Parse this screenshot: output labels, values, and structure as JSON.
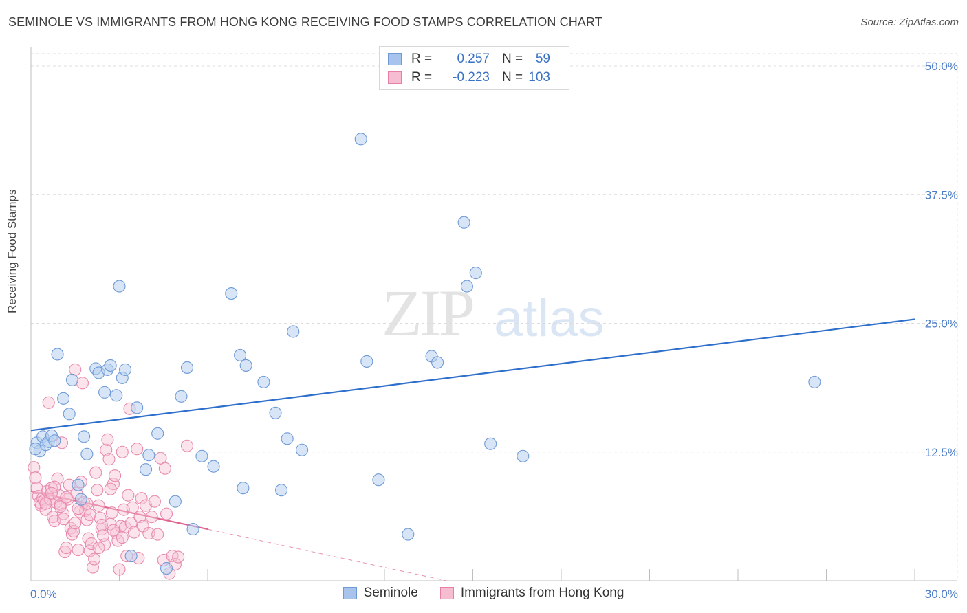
{
  "title": "SEMINOLE VS IMMIGRANTS FROM HONG KONG RECEIVING FOOD STAMPS CORRELATION CHART",
  "source": "Source: ZipAtlas.com",
  "watermark": {
    "zip": "ZIP",
    "atlas": "atlas"
  },
  "legend": {
    "r_label": "R =",
    "n_label": "N =",
    "rows": [
      {
        "name": "Seminole",
        "r": "0.257",
        "n": "59",
        "color": "#a9c4ec",
        "border": "#6f9ad6"
      },
      {
        "name": "Immigrants from Hong Kong",
        "r": "-0.223",
        "n": "103",
        "color": "#f6bdd0",
        "border": "#e87fa6"
      }
    ]
  },
  "chart_data": {
    "type": "scatter",
    "title": "SEMINOLE VS IMMIGRANTS FROM HONG KONG RECEIVING FOOD STAMPS CORRELATION CHART",
    "xlabel": "",
    "ylabel": "Receiving Food Stamps",
    "xlim": [
      0,
      30
    ],
    "ylim": [
      0,
      50
    ],
    "x_tick_labels": [
      {
        "value": 0,
        "label": "0.0%"
      },
      {
        "value": 30,
        "label": "30.0%"
      }
    ],
    "y_tick_labels": [
      {
        "value": 12.5,
        "label": "12.5%"
      },
      {
        "value": 25,
        "label": "25.0%"
      },
      {
        "value": 37.5,
        "label": "37.5%"
      },
      {
        "value": 50,
        "label": "50.0%"
      }
    ],
    "series": [
      {
        "name": "Seminole",
        "color": "#7aa3e0",
        "trend": {
          "x": [
            0,
            30
          ],
          "y": [
            14.6,
            25.4
          ],
          "color": "#2f6fcc"
        },
        "points": [
          [
            0.2,
            13.4
          ],
          [
            0.3,
            12.6
          ],
          [
            0.4,
            14.0
          ],
          [
            0.5,
            13.2
          ],
          [
            0.6,
            13.5
          ],
          [
            0.7,
            14.1
          ],
          [
            0.9,
            22.0
          ],
          [
            1.1,
            17.7
          ],
          [
            1.3,
            16.2
          ],
          [
            1.4,
            19.5
          ],
          [
            1.6,
            9.3
          ],
          [
            1.7,
            7.9
          ],
          [
            1.8,
            14.0
          ],
          [
            1.9,
            12.3
          ],
          [
            2.2,
            20.6
          ],
          [
            2.3,
            20.2
          ],
          [
            2.5,
            18.3
          ],
          [
            2.6,
            20.5
          ],
          [
            2.7,
            20.9
          ],
          [
            2.9,
            18.0
          ],
          [
            3.0,
            28.6
          ],
          [
            3.1,
            19.7
          ],
          [
            3.2,
            20.5
          ],
          [
            3.4,
            2.4
          ],
          [
            3.6,
            16.8
          ],
          [
            3.9,
            10.8
          ],
          [
            4.0,
            12.2
          ],
          [
            4.3,
            14.3
          ],
          [
            4.6,
            1.2
          ],
          [
            4.9,
            7.7
          ],
          [
            5.1,
            17.9
          ],
          [
            5.3,
            20.7
          ],
          [
            5.5,
            5.0
          ],
          [
            5.8,
            12.1
          ],
          [
            6.2,
            11.1
          ],
          [
            6.8,
            27.9
          ],
          [
            7.1,
            21.9
          ],
          [
            7.2,
            9.0
          ],
          [
            7.3,
            20.9
          ],
          [
            7.9,
            19.3
          ],
          [
            8.3,
            16.3
          ],
          [
            8.5,
            8.8
          ],
          [
            8.7,
            13.8
          ],
          [
            8.9,
            24.2
          ],
          [
            9.2,
            12.7
          ],
          [
            11.2,
            42.9
          ],
          [
            11.4,
            21.3
          ],
          [
            11.8,
            9.8
          ],
          [
            12.8,
            4.5
          ],
          [
            13.6,
            21.8
          ],
          [
            13.8,
            21.2
          ],
          [
            14.7,
            34.8
          ],
          [
            14.8,
            28.6
          ],
          [
            15.1,
            29.9
          ],
          [
            15.6,
            13.3
          ],
          [
            16.7,
            12.1
          ],
          [
            26.6,
            19.3
          ],
          [
            0.15,
            12.8
          ],
          [
            0.8,
            13.6
          ]
        ]
      },
      {
        "name": "Immigrants from Hong Kong",
        "color": "#f09bbb",
        "trend": {
          "x": [
            0,
            6
          ],
          "y": [
            8.7,
            5.0
          ],
          "color": "#e0648f"
        },
        "trend_extension": {
          "x": [
            6,
            30
          ],
          "y": [
            5.0,
            -9.8
          ]
        },
        "points": [
          [
            0.1,
            11.0
          ],
          [
            0.15,
            10.0
          ],
          [
            0.2,
            9.0
          ],
          [
            0.25,
            8.2
          ],
          [
            0.3,
            7.6
          ],
          [
            0.35,
            7.3
          ],
          [
            0.4,
            8.0
          ],
          [
            0.45,
            7.8
          ],
          [
            0.5,
            6.9
          ],
          [
            0.55,
            8.7
          ],
          [
            0.6,
            17.3
          ],
          [
            0.65,
            7.9
          ],
          [
            0.7,
            9.0
          ],
          [
            0.75,
            6.2
          ],
          [
            0.8,
            5.8
          ],
          [
            0.85,
            7.6
          ],
          [
            0.9,
            9.9
          ],
          [
            0.95,
            8.3
          ],
          [
            1.0,
            7.4
          ],
          [
            1.05,
            13.4
          ],
          [
            1.1,
            6.5
          ],
          [
            1.15,
            2.8
          ],
          [
            1.2,
            3.2
          ],
          [
            1.25,
            7.9
          ],
          [
            1.3,
            9.3
          ],
          [
            1.35,
            5.1
          ],
          [
            1.4,
            4.5
          ],
          [
            1.45,
            4.8
          ],
          [
            1.5,
            20.5
          ],
          [
            1.55,
            8.5
          ],
          [
            1.6,
            3.0
          ],
          [
            1.65,
            6.7
          ],
          [
            1.7,
            9.6
          ],
          [
            1.75,
            19.2
          ],
          [
            1.8,
            7.6
          ],
          [
            1.85,
            6.8
          ],
          [
            1.9,
            5.9
          ],
          [
            1.95,
            4.1
          ],
          [
            2.0,
            2.9
          ],
          [
            2.05,
            3.6
          ],
          [
            2.1,
            1.3
          ],
          [
            2.15,
            2.1
          ],
          [
            2.2,
            10.5
          ],
          [
            2.25,
            8.8
          ],
          [
            2.3,
            7.3
          ],
          [
            2.35,
            6.1
          ],
          [
            2.4,
            5.0
          ],
          [
            2.45,
            4.4
          ],
          [
            2.5,
            3.5
          ],
          [
            2.55,
            12.7
          ],
          [
            2.6,
            13.7
          ],
          [
            2.65,
            11.8
          ],
          [
            2.7,
            5.5
          ],
          [
            2.75,
            6.6
          ],
          [
            2.8,
            9.4
          ],
          [
            2.85,
            10.2
          ],
          [
            2.9,
            4.6
          ],
          [
            2.95,
            3.9
          ],
          [
            3.0,
            1.1
          ],
          [
            3.05,
            5.3
          ],
          [
            3.1,
            12.5
          ],
          [
            3.15,
            6.9
          ],
          [
            3.2,
            5.2
          ],
          [
            3.25,
            2.4
          ],
          [
            3.3,
            8.3
          ],
          [
            3.35,
            16.7
          ],
          [
            3.4,
            5.6
          ],
          [
            3.45,
            7.1
          ],
          [
            3.5,
            4.7
          ],
          [
            3.6,
            12.8
          ],
          [
            3.65,
            2.2
          ],
          [
            3.7,
            6.2
          ],
          [
            3.75,
            8.0
          ],
          [
            3.8,
            5.3
          ],
          [
            3.9,
            7.3
          ],
          [
            4.0,
            4.6
          ],
          [
            4.1,
            6.2
          ],
          [
            4.2,
            7.7
          ],
          [
            4.3,
            4.5
          ],
          [
            4.4,
            11.9
          ],
          [
            4.5,
            2.0
          ],
          [
            4.55,
            10.9
          ],
          [
            4.6,
            6.5
          ],
          [
            4.7,
            0.7
          ],
          [
            4.8,
            2.4
          ],
          [
            4.9,
            1.6
          ],
          [
            5.0,
            2.3
          ],
          [
            5.3,
            13.1
          ],
          [
            1.0,
            7.2
          ],
          [
            0.5,
            7.5
          ],
          [
            0.8,
            9.1
          ],
          [
            1.2,
            8.1
          ],
          [
            1.6,
            7.0
          ],
          [
            2.0,
            6.4
          ],
          [
            2.4,
            5.4
          ],
          [
            2.8,
            4.9
          ],
          [
            0.7,
            8.5
          ],
          [
            1.1,
            6.0
          ],
          [
            1.5,
            5.6
          ],
          [
            1.9,
            7.5
          ],
          [
            2.3,
            3.2
          ],
          [
            2.7,
            8.9
          ],
          [
            3.1,
            4.2
          ]
        ]
      }
    ]
  }
}
